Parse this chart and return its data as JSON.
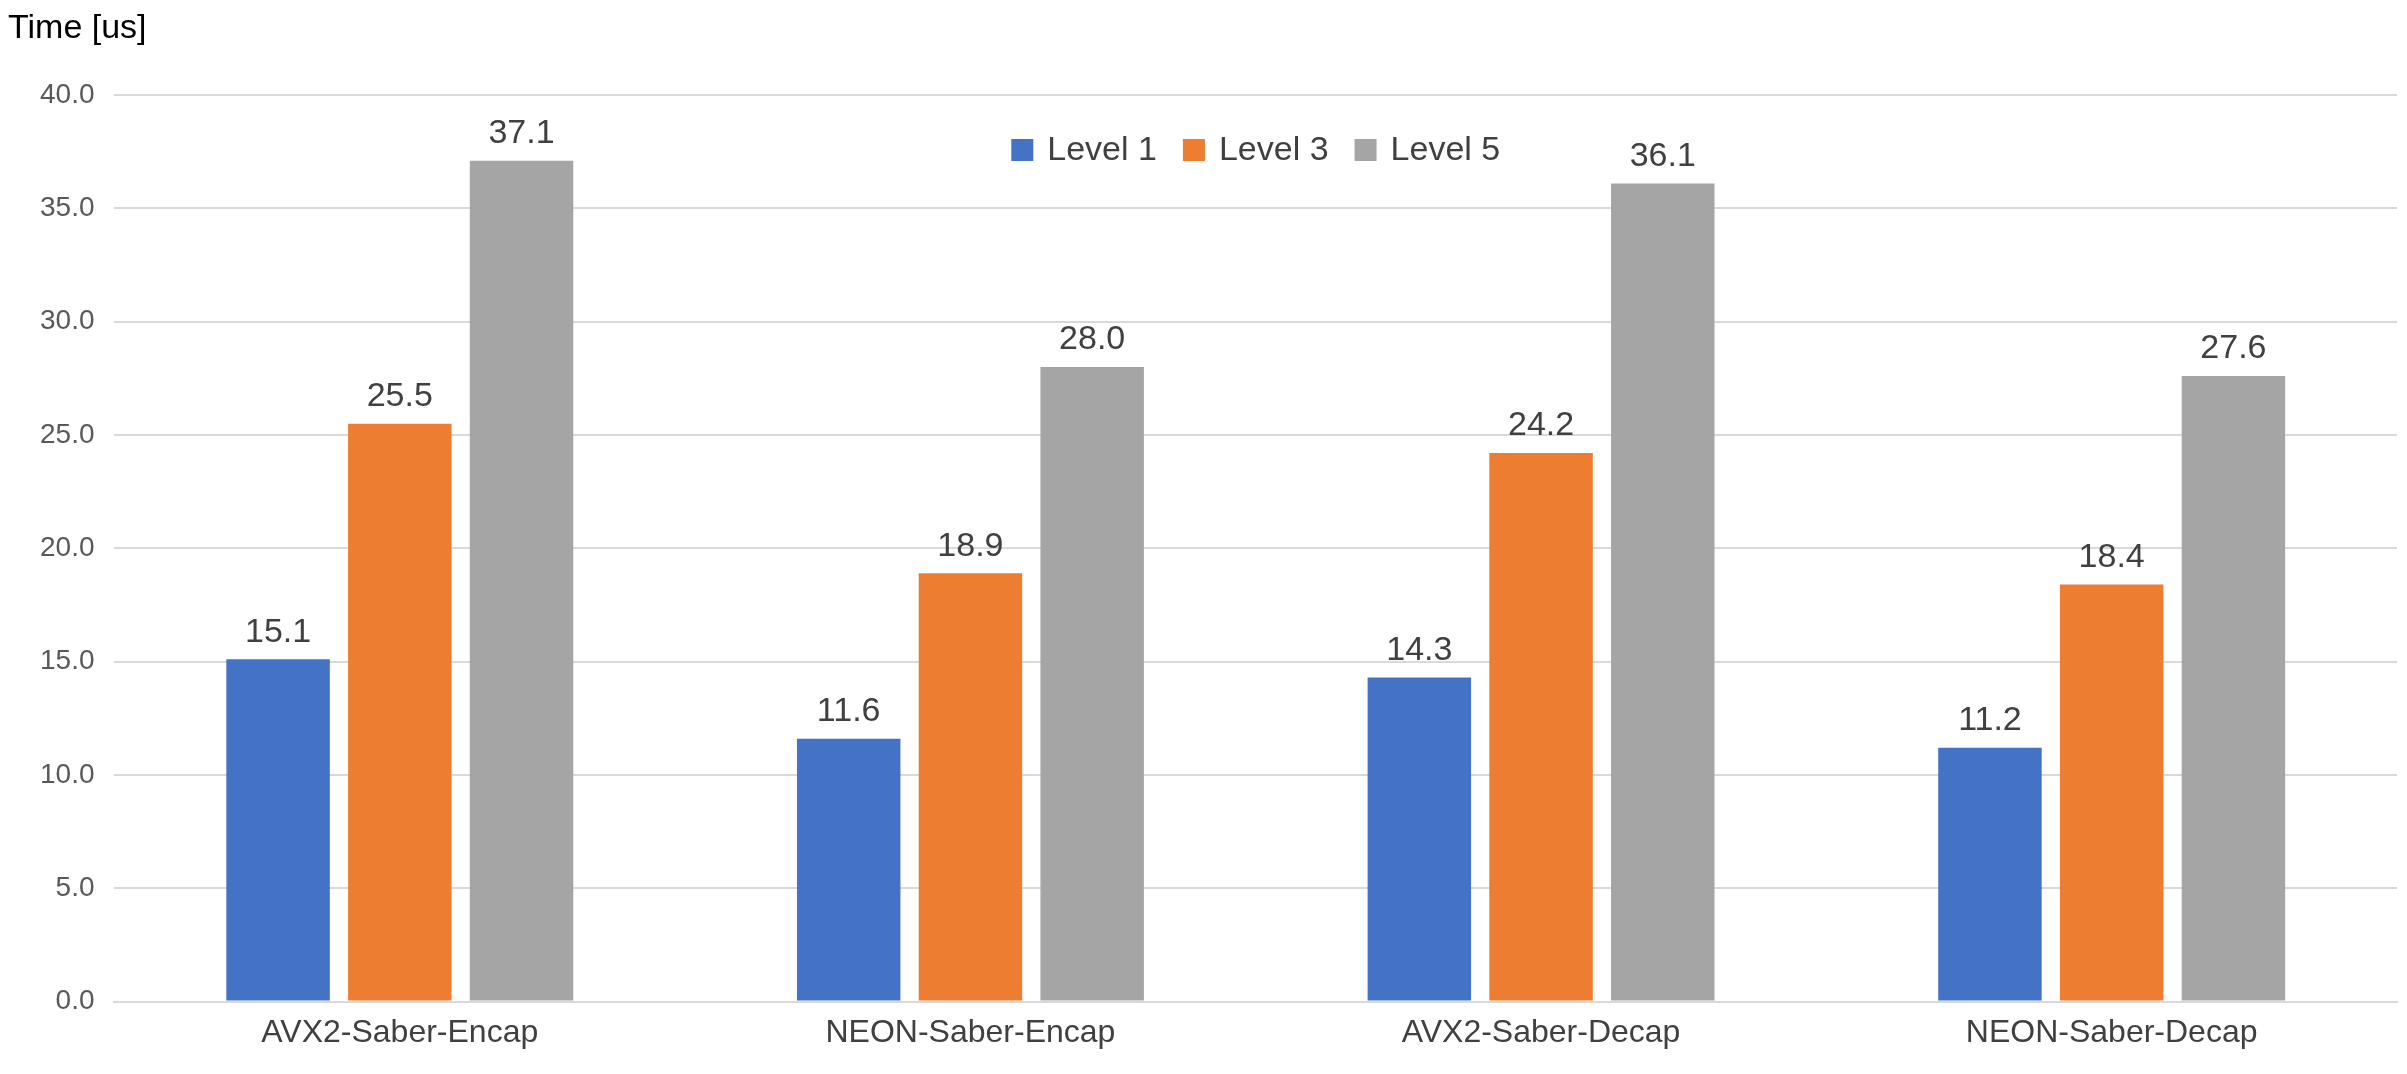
{
  "chart_data": {
    "type": "bar",
    "ylabel": "Time [us]",
    "categories": [
      "AVX2-Saber-Encap",
      "NEON-Saber-Encap",
      "AVX2-Saber-Decap",
      "NEON-Saber-Decap"
    ],
    "series": [
      {
        "name": "Level 1",
        "color": "#4472c4",
        "values": [
          15.1,
          11.6,
          14.3,
          11.2
        ],
        "value_labels": [
          "15.1",
          "11.6",
          "14.3",
          "11.2"
        ]
      },
      {
        "name": "Level 3",
        "color": "#ed7d31",
        "values": [
          25.5,
          18.9,
          24.2,
          18.4
        ],
        "value_labels": [
          "25.5",
          "18.9",
          "24.2",
          "18.4"
        ]
      },
      {
        "name": "Level 5",
        "color": "#a5a5a5",
        "values": [
          37.1,
          28.0,
          36.1,
          27.6
        ],
        "value_labels": [
          "37.1",
          "28.0",
          "36.1",
          "27.6"
        ]
      }
    ],
    "ylim": [
      0,
      40
    ],
    "yticks": [
      {
        "value": 0,
        "label": "0.0"
      },
      {
        "value": 5,
        "label": "5.0"
      },
      {
        "value": 10,
        "label": "10.0"
      },
      {
        "value": 15,
        "label": "15.0"
      },
      {
        "value": 20,
        "label": "20.0"
      },
      {
        "value": 25,
        "label": "25.0"
      },
      {
        "value": 30,
        "label": "30.0"
      },
      {
        "value": 35,
        "label": "35.0"
      },
      {
        "value": 40,
        "label": "40.0"
      }
    ],
    "grid": "y",
    "legend": "top"
  }
}
